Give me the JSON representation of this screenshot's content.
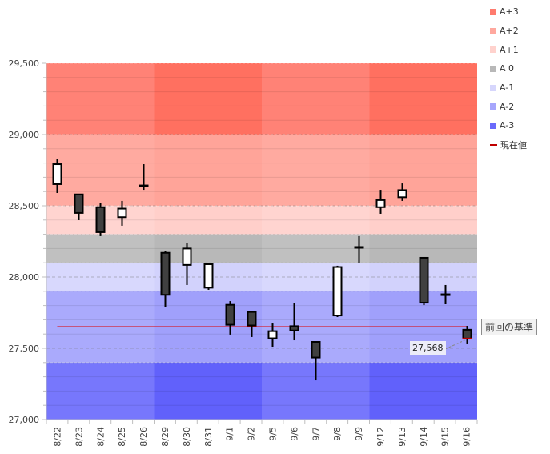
{
  "chart_data": {
    "type": "candlestick",
    "title": "",
    "xlabel": "",
    "ylabel": "",
    "ylim": [
      27000,
      29500
    ],
    "y_ticks": [
      {
        "value": 29500,
        "label": "29,500"
      },
      {
        "value": 29000,
        "label": "29,000"
      },
      {
        "value": 28500,
        "label": "28,500"
      },
      {
        "value": 28000,
        "label": "28,000"
      },
      {
        "value": 27500,
        "label": "27,500"
      },
      {
        "value": 27000,
        "label": "27,000"
      }
    ],
    "categories": [
      "8/22",
      "8/23",
      "8/24",
      "8/25",
      "8/26",
      "8/29",
      "8/30",
      "8/31",
      "9/1",
      "9/2",
      "9/5",
      "9/6",
      "9/7",
      "9/8",
      "9/9",
      "9/12",
      "9/13",
      "9/14",
      "9/15",
      "9/16"
    ],
    "week_groups": [
      [
        0,
        4
      ],
      [
        5,
        9
      ],
      [
        10,
        14
      ],
      [
        15,
        19
      ]
    ],
    "ohlc": [
      {
        "date": "8/22",
        "open": 28652,
        "high": 28826,
        "low": 28590,
        "close": 28792
      },
      {
        "date": "8/23",
        "open": 28580,
        "high": 28580,
        "low": 28399,
        "close": 28450
      },
      {
        "date": "8/24",
        "open": 28490,
        "high": 28517,
        "low": 28287,
        "close": 28315
      },
      {
        "date": "8/25",
        "open": 28420,
        "high": 28534,
        "low": 28360,
        "close": 28480
      },
      {
        "date": "8/26",
        "open": 28640,
        "high": 28792,
        "low": 28612,
        "close": 28640
      },
      {
        "date": "8/29",
        "open": 28170,
        "high": 28180,
        "low": 27792,
        "close": 27875
      },
      {
        "date": "8/30",
        "open": 28085,
        "high": 28236,
        "low": 27944,
        "close": 28200
      },
      {
        "date": "8/31",
        "open": 27925,
        "high": 28101,
        "low": 27910,
        "close": 28090
      },
      {
        "date": "9/1",
        "open": 27805,
        "high": 27831,
        "low": 27596,
        "close": 27665
      },
      {
        "date": "9/2",
        "open": 27755,
        "high": 27764,
        "low": 27579,
        "close": 27660
      },
      {
        "date": "9/5",
        "open": 27570,
        "high": 27674,
        "low": 27511,
        "close": 27620
      },
      {
        "date": "9/6",
        "open": 27655,
        "high": 27815,
        "low": 27556,
        "close": 27625
      },
      {
        "date": "9/7",
        "open": 27545,
        "high": 27545,
        "low": 27275,
        "close": 27435
      },
      {
        "date": "9/8",
        "open": 27730,
        "high": 28079,
        "low": 27719,
        "close": 28070
      },
      {
        "date": "9/9",
        "open": 28208,
        "high": 28287,
        "low": 28096,
        "close": 28208
      },
      {
        "date": "9/12",
        "open": 28490,
        "high": 28612,
        "low": 28444,
        "close": 28540
      },
      {
        "date": "9/13",
        "open": 28560,
        "high": 28657,
        "low": 28534,
        "close": 28610
      },
      {
        "date": "9/14",
        "open": 28135,
        "high": 28135,
        "low": 27803,
        "close": 27820
      },
      {
        "date": "9/15",
        "open": 27876,
        "high": 27944,
        "low": 27809,
        "close": 27876
      },
      {
        "date": "9/16",
        "open": 27630,
        "high": 27657,
        "low": 27534,
        "close": 27568
      }
    ],
    "bands": [
      {
        "name": "A+3",
        "from": 29000,
        "to": 29500,
        "color": "#ff8276",
        "color_alt": "#ff7060"
      },
      {
        "name": "A+2",
        "from": 28500,
        "to": 29000,
        "color": "#ffaaa0",
        "color_alt": "#ffa499"
      },
      {
        "name": "A+1",
        "from": 28300,
        "to": 28500,
        "color": "#ffd4d0",
        "color_alt": "#ffcfca"
      },
      {
        "name": "A 0",
        "from": 28100,
        "to": 28300,
        "color": "#c0c0c0",
        "color_alt": "#b8b8b8"
      },
      {
        "name": "A-1",
        "from": 27900,
        "to": 28100,
        "color": "#d8d8fd",
        "color_alt": "#d2d2fc"
      },
      {
        "name": "A-2",
        "from": 27400,
        "to": 27900,
        "color": "#aaaafc",
        "color_alt": "#a0a0fb"
      },
      {
        "name": "A-3",
        "from": 27000,
        "to": 27400,
        "color": "#7777fc",
        "color_alt": "#6161fb"
      }
    ],
    "reference_line": {
      "label": "前回の基準",
      "value": 27652,
      "color": "#e00000"
    },
    "current_value": {
      "value": 27568,
      "label": "27,568",
      "color": "#c00000"
    },
    "legend": {
      "placement": "right",
      "items": [
        {
          "label": "A+3",
          "color": "#ff7b6e",
          "type": "square"
        },
        {
          "label": "A+2",
          "color": "#ffa89e",
          "type": "square"
        },
        {
          "label": "A+1",
          "color": "#ffd2cd",
          "type": "square"
        },
        {
          "label": "A 0",
          "color": "#b8b8b8",
          "type": "square"
        },
        {
          "label": "A-1",
          "color": "#d6d6fc",
          "type": "square"
        },
        {
          "label": "A-2",
          "color": "#a6a6fc",
          "type": "square"
        },
        {
          "label": "A-3",
          "color": "#6a6afb",
          "type": "square"
        },
        {
          "label": "現在値",
          "color": "#c00000",
          "type": "line"
        }
      ]
    },
    "colors": {
      "up_body": "#ffffff",
      "down_body": "#404040",
      "outline": "#000000",
      "grid": "rgba(0,0,0,0.08)"
    }
  }
}
